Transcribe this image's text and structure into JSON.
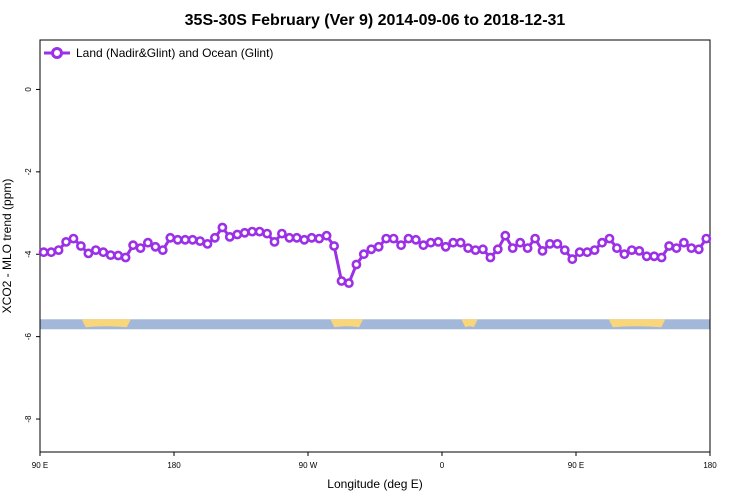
{
  "chart_data": {
    "type": "line",
    "title": "35S-30S February (Ver 9)   2014-09-06 to 2018-12-31",
    "xlabel": "Longitude (deg E)",
    "ylabel": "XCO2 - MLO trend (ppm)",
    "x_ticks": [
      {
        "value": 90,
        "label": "90 E"
      },
      {
        "value": 180,
        "label": "180"
      },
      {
        "value": 270,
        "label": "90 W"
      },
      {
        "value": 360,
        "label": "0"
      },
      {
        "value": 450,
        "label": "90 E"
      },
      {
        "value": 540,
        "label": "180"
      }
    ],
    "y_ticks": [
      {
        "value": 0,
        "label": "0"
      },
      {
        "value": -2,
        "label": "-2"
      },
      {
        "value": -4,
        "label": "-4"
      },
      {
        "value": -6,
        "label": "-6"
      },
      {
        "value": -8,
        "label": "-8"
      }
    ],
    "xlim": [
      90,
      540
    ],
    "ylim": [
      -8.8,
      1.2
    ],
    "grid": false,
    "legend_position": "top-left",
    "series": [
      {
        "name": "Land (Nadir&Glint) and Ocean (Glint)",
        "color": "#9b30e6",
        "marker": "open-circle",
        "x": [
          92.5,
          97.5,
          102.5,
          107.5,
          112.5,
          117.5,
          122.5,
          127.5,
          132.5,
          137.5,
          142.5,
          147.5,
          152.5,
          157.5,
          162.5,
          167.5,
          172.5,
          177.5,
          182.5,
          187.5,
          192.5,
          197.5,
          202.5,
          207.5,
          212.5,
          217.5,
          222.5,
          227.5,
          232.5,
          237.5,
          242.5,
          247.5,
          252.5,
          257.5,
          262.5,
          267.5,
          272.5,
          277.5,
          282.5,
          287.5,
          292.5,
          297.5,
          302.5,
          307.5,
          312.5,
          317.5,
          322.5,
          327.5,
          332.5,
          337.5,
          342.5,
          347.5,
          352.5,
          357.5,
          362.5,
          367.5,
          372.5,
          377.5,
          382.5,
          387.5,
          392.5,
          397.5,
          402.5,
          407.5,
          412.5,
          417.5,
          422.5,
          427.5,
          432.5,
          437.5,
          442.5,
          447.5,
          452.5,
          457.5,
          462.5,
          467.5,
          472.5,
          477.5,
          482.5,
          487.5,
          492.5,
          497.5,
          502.5,
          507.5,
          512.5,
          517.5,
          522.5,
          527.5,
          532.5,
          537.5
        ],
        "y": [
          -3.95,
          -3.95,
          -3.9,
          -3.7,
          -3.62,
          -3.8,
          -3.98,
          -3.9,
          -3.95,
          -4.02,
          -4.03,
          -4.08,
          -3.78,
          -3.85,
          -3.72,
          -3.82,
          -3.9,
          -3.6,
          -3.65,
          -3.65,
          -3.65,
          -3.68,
          -3.75,
          -3.6,
          -3.35,
          -3.58,
          -3.52,
          -3.48,
          -3.45,
          -3.45,
          -3.5,
          -3.7,
          -3.5,
          -3.6,
          -3.6,
          -3.65,
          -3.6,
          -3.62,
          -3.55,
          -3.8,
          -4.65,
          -4.7,
          -4.25,
          -4.0,
          -3.88,
          -3.82,
          -3.62,
          -3.62,
          -3.78,
          -3.62,
          -3.65,
          -3.78,
          -3.72,
          -3.7,
          -3.82,
          -3.72,
          -3.72,
          -3.85,
          -3.9,
          -3.88,
          -4.08,
          -3.88,
          -3.55,
          -3.85,
          -3.72,
          -3.85,
          -3.62,
          -3.92,
          -3.75,
          -3.75,
          -3.9,
          -4.12,
          -3.95,
          -3.95,
          -3.9,
          -3.72,
          -3.62,
          -3.85,
          -4.0,
          -3.9,
          -3.92,
          -4.05,
          -4.05,
          -4.08,
          -3.8,
          -3.85,
          -3.72,
          -3.85,
          -3.88,
          -3.62
        ]
      }
    ],
    "surface_band": {
      "y": -5.7,
      "ocean_color": "#a3b8d8",
      "land_color": "#f9d67a",
      "land_segments": [
        [
          118,
          151
        ],
        [
          285,
          307
        ],
        [
          373,
          384
        ],
        [
          472,
          510
        ]
      ]
    }
  }
}
